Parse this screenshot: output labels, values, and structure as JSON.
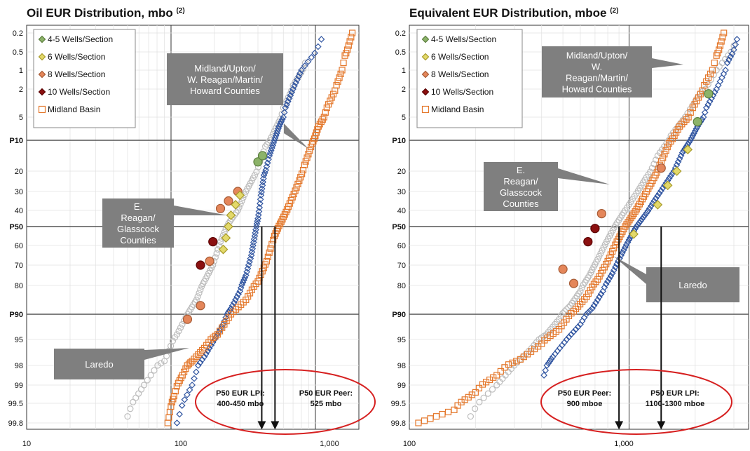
{
  "colors": {
    "oil_45": "#8cb369",
    "oil_6": "#e3d96a",
    "oil_8": "#e4865a",
    "oil_10": "#8b1010",
    "midland_basin": "#e4782c",
    "midland_counties": "#2f54a0",
    "ereagan": "#bdbdbd",
    "callout_bg": "#7f7f7f",
    "ellipse": "#d62020"
  },
  "chart_data": [
    {
      "type": "scatter",
      "title": "Oil EUR Distribution, mbo",
      "title_sup": "(2)",
      "x_scale": "log",
      "x_range": [
        10,
        2000
      ],
      "x_ticks": [
        "10",
        "100",
        "1,000"
      ],
      "y_scale": "probability",
      "y_ticks": [
        "0.2",
        "0.5",
        "1",
        "2",
        "5",
        "P10",
        "20",
        "30",
        "40",
        "P50",
        "60",
        "70",
        "80",
        "P90",
        "95",
        "98",
        "99",
        "99.5",
        "99.8"
      ],
      "legend_position": "top-left",
      "legend": [
        "4-5 Wells/Section",
        "6 Wells/Section",
        "8 Wells/Section",
        "10 Wells/Section",
        "Midland Basin"
      ],
      "callouts": [
        {
          "text": [
            "Midland/Upton/",
            "W. Reagan/Martin/",
            "Howard Counties"
          ]
        },
        {
          "text": [
            "E.",
            "Reagan/",
            "Glasscock",
            "Counties"
          ]
        },
        {
          "text": [
            "Laredo"
          ]
        }
      ],
      "annotations": [
        {
          "text": [
            "P50 EUR LPI:",
            "400-450 mbo"
          ]
        },
        {
          "text": [
            "P50 EUR Peer:",
            "525 mbo"
          ]
        }
      ],
      "arrows_x": [
        425,
        525
      ],
      "series": [
        {
          "name": "4-5 Wells/Section",
          "points": [
            [
              400,
              17
            ],
            [
              430,
              15
            ]
          ]
        },
        {
          "name": "6 Wells/Section",
          "points": [
            [
              300,
              32
            ],
            [
              280,
              37
            ],
            [
              260,
              43
            ],
            [
              250,
              50
            ],
            [
              240,
              56
            ],
            [
              230,
              62
            ]
          ]
        },
        {
          "name": "8 Wells/Section",
          "points": [
            [
              290,
              30
            ],
            [
              250,
              35
            ],
            [
              220,
              39
            ],
            [
              185,
              68
            ],
            [
              160,
              87
            ],
            [
              130,
              91
            ]
          ]
        },
        {
          "name": "10 Wells/Section",
          "points": [
            [
              195,
              58
            ],
            [
              160,
              70
            ]
          ]
        },
        {
          "name": "Midland Basin",
          "points": [
            [
              95,
              99.8
            ],
            [
              105,
              99.3
            ],
            [
              120,
              98.5
            ],
            [
              140,
              97.5
            ],
            [
              170,
              96
            ],
            [
              210,
              94
            ],
            [
              260,
              90
            ],
            [
              330,
              85
            ],
            [
              400,
              78
            ],
            [
              460,
              68
            ],
            [
              520,
              55
            ],
            [
              580,
              47
            ],
            [
              650,
              38
            ],
            [
              740,
              28
            ],
            [
              840,
              18
            ],
            [
              950,
              11
            ],
            [
              1050,
              7
            ],
            [
              1200,
              4
            ],
            [
              1400,
              1.8
            ],
            [
              1600,
              0.6
            ],
            [
              1800,
              0.2
            ]
          ]
        },
        {
          "name": "Midland/Upton/W. Reagan/Martin/Howard Counties",
          "points": [
            [
              110,
              99.8
            ],
            [
              140,
              99
            ],
            [
              170,
              97
            ],
            [
              200,
              95
            ],
            [
              230,
              92
            ],
            [
              260,
              88
            ],
            [
              300,
              82
            ],
            [
              330,
              75
            ],
            [
              360,
              65
            ],
            [
              380,
              55
            ],
            [
              400,
              45
            ],
            [
              420,
              32
            ],
            [
              440,
              22
            ],
            [
              480,
              15
            ],
            [
              520,
              10
            ],
            [
              560,
              7
            ],
            [
              620,
              4
            ],
            [
              700,
              2
            ],
            [
              800,
              1
            ],
            [
              1100,
              0.3
            ]
          ]
        },
        {
          "name": "E. Reagan/Glasscock Counties",
          "points": [
            [
              50,
              99.7
            ],
            [
              65,
              99
            ],
            [
              90,
              97.5
            ],
            [
              110,
              94
            ],
            [
              130,
              90
            ],
            [
              150,
              85
            ],
            [
              170,
              78
            ],
            [
              195,
              70
            ],
            [
              220,
              58
            ],
            [
              250,
              48
            ],
            [
              290,
              40
            ],
            [
              330,
              30
            ],
            [
              380,
              22
            ],
            [
              450,
              12
            ],
            [
              520,
              8
            ],
            [
              600,
              4
            ],
            [
              700,
              1.8
            ],
            [
              850,
              0.8
            ]
          ]
        }
      ]
    },
    {
      "type": "scatter",
      "title": "Equivalent EUR Distribution, mboe",
      "title_sup": "(2)",
      "x_scale": "log",
      "x_range": [
        100,
        3500
      ],
      "x_ticks": [
        "100",
        "1,000"
      ],
      "y_scale": "probability",
      "y_ticks": [
        "0.2",
        "0.5",
        "1",
        "2",
        "5",
        "P10",
        "20",
        "30",
        "40",
        "P50",
        "60",
        "70",
        "80",
        "P90",
        "95",
        "98",
        "99",
        "99.5",
        "99.8"
      ],
      "legend_position": "top-left",
      "legend": [
        "4-5 Wells/Section",
        "6 Wells/Section",
        "8 Wells/Section",
        "10 Wells/Section",
        "Midland Basin"
      ],
      "callouts": [
        {
          "text": [
            "Midland/Upton/",
            "W.",
            "Reagan/Martin/",
            "Howard Counties"
          ]
        },
        {
          "text": [
            "E.",
            "Reagan/",
            "Glasscock",
            "Counties"
          ]
        },
        {
          "text": [
            "Laredo"
          ]
        }
      ],
      "annotations": [
        {
          "text": [
            "P50 EUR Peer:",
            "900 mboe"
          ]
        },
        {
          "text": [
            "P50 EUR LPI:",
            "1100-1300 mboe"
          ]
        }
      ],
      "arrows_x": [
        900,
        1400
      ],
      "series": [
        {
          "name": "4-5 Wells/Section",
          "points": [
            [
              2300,
              2.5
            ],
            [
              2050,
              6
            ]
          ]
        },
        {
          "name": "6 Wells/Section",
          "points": [
            [
              1850,
              13
            ],
            [
              1650,
              20
            ],
            [
              1500,
              27
            ],
            [
              1350,
              37
            ],
            [
              1050,
              54
            ]
          ]
        },
        {
          "name": "8 Wells/Section",
          "points": [
            [
              1400,
              19
            ],
            [
              750,
              42
            ],
            [
              500,
              72
            ],
            [
              560,
              79
            ]
          ]
        },
        {
          "name": "10 Wells/Section",
          "points": [
            [
              700,
              51
            ],
            [
              650,
              58
            ]
          ]
        },
        {
          "name": "Midland Basin",
          "points": [
            [
              110,
              99.8
            ],
            [
              160,
              99.6
            ],
            [
              200,
              99.2
            ],
            [
              250,
              98.5
            ],
            [
              320,
              97.3
            ],
            [
              400,
              95.5
            ],
            [
              480,
              93
            ],
            [
              560,
              89
            ],
            [
              640,
              84
            ],
            [
              720,
              77
            ],
            [
              800,
              68
            ],
            [
              880,
              58
            ],
            [
              960,
              50
            ],
            [
              1050,
              42
            ],
            [
              1150,
              34
            ],
            [
              1260,
              26
            ],
            [
              1380,
              18
            ],
            [
              1520,
              11
            ],
            [
              1700,
              7
            ],
            [
              1950,
              4
            ],
            [
              2200,
              1.8
            ],
            [
              2500,
              0.6
            ],
            [
              2700,
              0.2
            ]
          ]
        },
        {
          "name": "Midland/Upton/W. Reagan/Martin/Howard Counties",
          "points": [
            [
              410,
              98.5
            ],
            [
              450,
              97
            ],
            [
              520,
              95
            ],
            [
              600,
              92
            ],
            [
              680,
              88
            ],
            [
              760,
              82
            ],
            [
              840,
              74
            ],
            [
              920,
              65
            ],
            [
              1000,
              57
            ],
            [
              1080,
              50
            ],
            [
              1180,
              43
            ],
            [
              1300,
              35
            ],
            [
              1450,
              27
            ],
            [
              1600,
              20
            ],
            [
              1750,
              14
            ],
            [
              1900,
              10
            ],
            [
              2050,
              7
            ],
            [
              2250,
              4
            ],
            [
              2500,
              2
            ],
            [
              2800,
              0.8
            ],
            [
              3100,
              0.3
            ]
          ]
        },
        {
          "name": "E. Reagan/Glasscock Counties",
          "points": [
            [
              190,
              99.7
            ],
            [
              250,
              99
            ],
            [
              300,
              98
            ],
            [
              360,
              96
            ],
            [
              420,
              94
            ],
            [
              480,
              91
            ],
            [
              540,
              87
            ],
            [
              600,
              82
            ],
            [
              660,
              75
            ],
            [
              720,
              67
            ],
            [
              790,
              58
            ],
            [
              870,
              49
            ],
            [
              960,
              40
            ],
            [
              1080,
              31
            ],
            [
              1200,
              23
            ],
            [
              1350,
              15
            ],
            [
              1550,
              9
            ],
            [
              1800,
              5
            ],
            [
              2100,
              2.5
            ],
            [
              2500,
              1
            ],
            [
              3000,
              0.4
            ]
          ]
        }
      ]
    }
  ]
}
